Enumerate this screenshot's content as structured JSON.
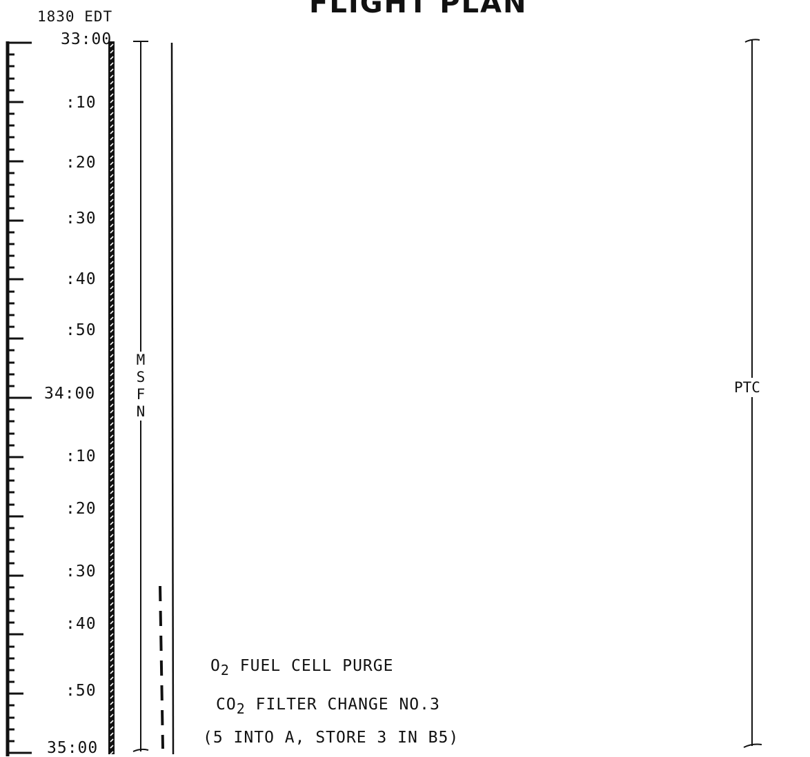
{
  "header": {
    "title": "FLIGHT PLAN",
    "local_time": "1830 EDT"
  },
  "timeline": {
    "labels": [
      "33:00",
      ":10",
      ":20",
      ":30",
      ":40",
      ":50",
      "34:00",
      ":10",
      ":20",
      ":30",
      ":40",
      ":50",
      "35:00"
    ]
  },
  "msfn": {
    "letters": [
      "M",
      "S",
      "F",
      "N"
    ]
  },
  "ptc": {
    "label": "PTC"
  },
  "notes": {
    "o2_prefix": "O",
    "o2_sub": "2",
    "o2_text": " FUEL CELL PURGE",
    "co2_prefix": "CO",
    "co2_sub": "2",
    "co2_text": " FILTER CHANGE NO.3",
    "store": "(5 INTO A, STORE 3 IN B5)"
  }
}
